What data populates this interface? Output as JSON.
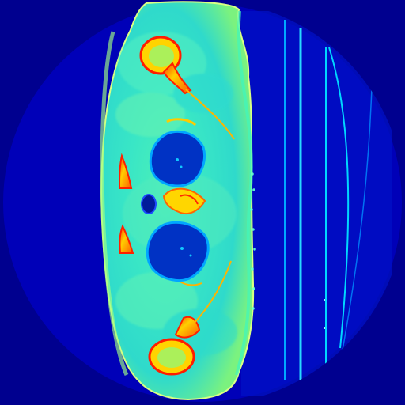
{
  "image": {
    "kind": "pseudocolor axial scan slice",
    "colormap": "jet",
    "palette": {
      "background": "#00008f",
      "outer_circle": "#0000b8",
      "body_soft_tissue": "#35e3c0",
      "body_edge": "#48f09f",
      "bone_outer": "#ff2c00",
      "bone_middle": "#ffd100",
      "cavity": "#0030c0",
      "cavity_dark": "#001c9a",
      "lines": "#00a8ff",
      "bright_lines": "#28d9ff"
    }
  }
}
